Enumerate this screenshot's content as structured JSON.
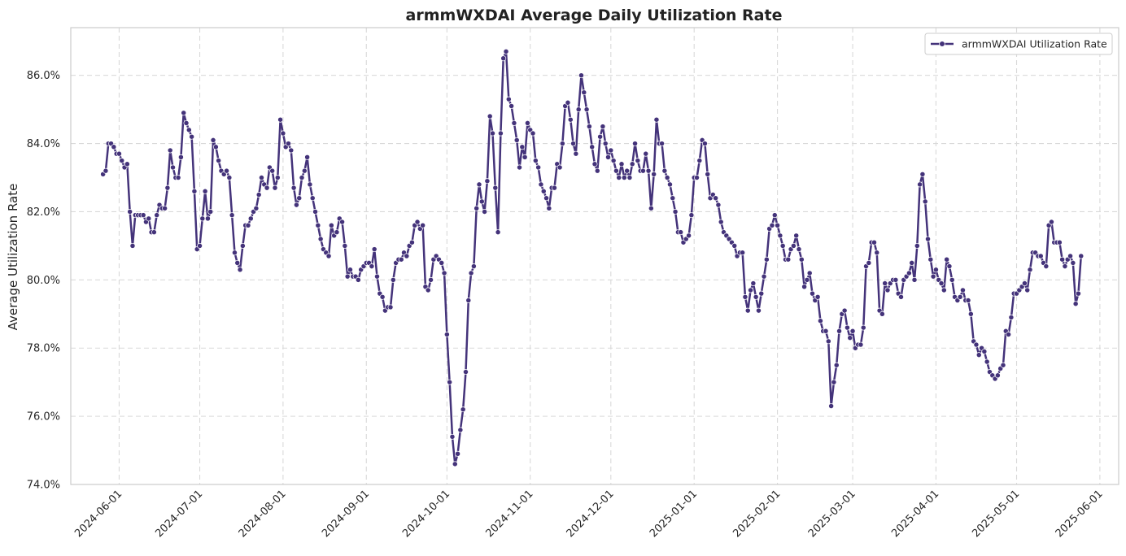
{
  "chart_data": {
    "type": "line",
    "title": "armmWXDAI Average Daily Utilization Rate",
    "xlabel": "",
    "ylabel": "Average Utilization Rate",
    "ylim": [
      74.0,
      87.4
    ],
    "xlim": [
      "2024-05-14",
      "2025-06-08"
    ],
    "y_ticks": [
      "74.0%",
      "76.0%",
      "78.0%",
      "80.0%",
      "82.0%",
      "84.0%",
      "86.0%"
    ],
    "y_tick_values": [
      74,
      76,
      78,
      80,
      82,
      84,
      86
    ],
    "x_ticks": [
      "2024-06-01",
      "2024-07-01",
      "2024-08-01",
      "2024-09-01",
      "2024-10-01",
      "2024-11-01",
      "2024-12-01",
      "2025-01-01",
      "2025-02-01",
      "2025-03-01",
      "2025-04-01",
      "2025-05-01",
      "2025-06-01"
    ],
    "grid": true,
    "legend_position": "top-right",
    "series": [
      {
        "name": "armmWXDAI Utilization Rate",
        "color": "#44337a",
        "x": [
          "2024-05-26",
          "2024-05-27",
          "2024-05-28",
          "2024-05-29",
          "2024-05-30",
          "2024-05-31",
          "2024-06-01",
          "2024-06-02",
          "2024-06-03",
          "2024-06-04",
          "2024-06-05",
          "2024-06-06",
          "2024-06-07",
          "2024-06-08",
          "2024-06-09",
          "2024-06-10",
          "2024-06-11",
          "2024-06-12",
          "2024-06-13",
          "2024-06-14",
          "2024-06-15",
          "2024-06-16",
          "2024-06-17",
          "2024-06-18",
          "2024-06-19",
          "2024-06-20",
          "2024-06-21",
          "2024-06-22",
          "2024-06-23",
          "2024-06-24",
          "2024-06-25",
          "2024-06-26",
          "2024-06-27",
          "2024-06-28",
          "2024-06-29",
          "2024-06-30",
          "2024-07-01",
          "2024-07-02",
          "2024-07-03",
          "2024-07-04",
          "2024-07-05",
          "2024-07-06",
          "2024-07-07",
          "2024-07-08",
          "2024-07-09",
          "2024-07-10",
          "2024-07-11",
          "2024-07-12",
          "2024-07-13",
          "2024-07-14",
          "2024-07-15",
          "2024-07-16",
          "2024-07-17",
          "2024-07-18",
          "2024-07-19",
          "2024-07-20",
          "2024-07-21",
          "2024-07-22",
          "2024-07-23",
          "2024-07-24",
          "2024-07-25",
          "2024-07-26",
          "2024-07-27",
          "2024-07-28",
          "2024-07-29",
          "2024-07-30",
          "2024-07-31",
          "2024-08-01",
          "2024-08-02",
          "2024-08-03",
          "2024-08-04",
          "2024-08-05",
          "2024-08-06",
          "2024-08-07",
          "2024-08-08",
          "2024-08-09",
          "2024-08-10",
          "2024-08-11",
          "2024-08-12",
          "2024-08-13",
          "2024-08-14",
          "2024-08-15",
          "2024-08-16",
          "2024-08-17",
          "2024-08-18",
          "2024-08-19",
          "2024-08-20",
          "2024-08-21",
          "2024-08-22",
          "2024-08-23",
          "2024-08-24",
          "2024-08-25",
          "2024-08-26",
          "2024-08-27",
          "2024-08-28",
          "2024-08-29",
          "2024-08-30",
          "2024-08-31",
          "2024-09-01",
          "2024-09-02",
          "2024-09-03",
          "2024-09-04",
          "2024-09-05",
          "2024-09-06",
          "2024-09-07",
          "2024-09-08",
          "2024-09-09",
          "2024-09-10",
          "2024-09-11",
          "2024-09-12",
          "2024-09-13",
          "2024-09-14",
          "2024-09-15",
          "2024-09-16",
          "2024-09-17",
          "2024-09-18",
          "2024-09-19",
          "2024-09-20",
          "2024-09-21",
          "2024-09-22",
          "2024-09-23",
          "2024-09-24",
          "2024-09-25",
          "2024-09-26",
          "2024-09-27",
          "2024-09-28",
          "2024-09-29",
          "2024-09-30",
          "2024-10-01",
          "2024-10-02",
          "2024-10-03",
          "2024-10-04",
          "2024-10-05",
          "2024-10-06",
          "2024-10-07",
          "2024-10-08",
          "2024-10-09",
          "2024-10-10",
          "2024-10-11",
          "2024-10-12",
          "2024-10-13",
          "2024-10-14",
          "2024-10-15",
          "2024-10-16",
          "2024-10-17",
          "2024-10-18",
          "2024-10-19",
          "2024-10-20",
          "2024-10-21",
          "2024-10-22",
          "2024-10-23",
          "2024-10-24",
          "2024-10-25",
          "2024-10-26",
          "2024-10-27",
          "2024-10-28",
          "2024-10-29",
          "2024-10-30",
          "2024-10-31",
          "2024-11-01",
          "2024-11-02",
          "2024-11-03",
          "2024-11-04",
          "2024-11-05",
          "2024-11-06",
          "2024-11-07",
          "2024-11-08",
          "2024-11-09",
          "2024-11-10",
          "2024-11-11",
          "2024-11-12",
          "2024-11-13",
          "2024-11-14",
          "2024-11-15",
          "2024-11-16",
          "2024-11-17",
          "2024-11-18",
          "2024-11-19",
          "2024-11-20",
          "2024-11-21",
          "2024-11-22",
          "2024-11-23",
          "2024-11-24",
          "2024-11-25",
          "2024-11-26",
          "2024-11-27",
          "2024-11-28",
          "2024-11-29",
          "2024-11-30",
          "2024-12-01",
          "2024-12-02",
          "2024-12-03",
          "2024-12-04",
          "2024-12-05",
          "2024-12-06",
          "2024-12-07",
          "2024-12-08",
          "2024-12-09",
          "2024-12-10",
          "2024-12-11",
          "2024-12-12",
          "2024-12-13",
          "2024-12-14",
          "2024-12-15",
          "2024-12-16",
          "2024-12-17",
          "2024-12-18",
          "2024-12-19",
          "2024-12-20",
          "2024-12-21",
          "2024-12-22",
          "2024-12-23",
          "2024-12-24",
          "2024-12-25",
          "2024-12-26",
          "2024-12-27",
          "2024-12-28",
          "2024-12-29",
          "2024-12-30",
          "2024-12-31",
          "2025-01-01",
          "2025-01-02",
          "2025-01-03",
          "2025-01-04",
          "2025-01-05",
          "2025-01-06",
          "2025-01-07",
          "2025-01-08",
          "2025-01-09",
          "2025-01-10",
          "2025-01-11",
          "2025-01-12",
          "2025-01-13",
          "2025-01-14",
          "2025-01-15",
          "2025-01-16",
          "2025-01-17",
          "2025-01-18",
          "2025-01-19",
          "2025-01-20",
          "2025-01-21",
          "2025-01-22",
          "2025-01-23",
          "2025-01-24",
          "2025-01-25",
          "2025-01-26",
          "2025-01-27",
          "2025-01-28",
          "2025-01-29",
          "2025-01-30",
          "2025-01-31",
          "2025-02-01",
          "2025-02-02",
          "2025-02-03",
          "2025-02-04",
          "2025-02-05",
          "2025-02-06",
          "2025-02-07",
          "2025-02-08",
          "2025-02-09",
          "2025-02-10",
          "2025-02-11",
          "2025-02-12",
          "2025-02-13",
          "2025-02-14",
          "2025-02-15",
          "2025-02-16",
          "2025-02-17",
          "2025-02-18",
          "2025-02-19",
          "2025-02-20",
          "2025-02-21",
          "2025-02-22",
          "2025-02-23",
          "2025-02-24",
          "2025-02-25",
          "2025-02-26",
          "2025-02-27",
          "2025-02-28",
          "2025-03-01",
          "2025-03-02",
          "2025-03-03",
          "2025-03-04",
          "2025-03-05",
          "2025-03-06",
          "2025-03-07",
          "2025-03-08",
          "2025-03-09",
          "2025-03-10",
          "2025-03-11",
          "2025-03-12",
          "2025-03-13",
          "2025-03-14",
          "2025-03-15",
          "2025-03-16",
          "2025-03-17",
          "2025-03-18",
          "2025-03-19",
          "2025-03-20",
          "2025-03-21",
          "2025-03-22",
          "2025-03-23",
          "2025-03-24",
          "2025-03-25",
          "2025-03-26",
          "2025-03-27",
          "2025-03-28",
          "2025-03-29",
          "2025-03-30",
          "2025-03-31",
          "2025-04-01",
          "2025-04-02",
          "2025-04-03",
          "2025-04-04",
          "2025-04-05",
          "2025-04-06",
          "2025-04-07",
          "2025-04-08",
          "2025-04-09",
          "2025-04-10",
          "2025-04-11",
          "2025-04-12",
          "2025-04-13",
          "2025-04-14",
          "2025-04-15",
          "2025-04-16",
          "2025-04-17",
          "2025-04-18",
          "2025-04-19",
          "2025-04-20",
          "2025-04-21",
          "2025-04-22",
          "2025-04-23",
          "2025-04-24",
          "2025-04-25",
          "2025-04-26",
          "2025-04-27",
          "2025-04-28",
          "2025-04-29",
          "2025-04-30",
          "2025-05-01",
          "2025-05-02",
          "2025-05-03",
          "2025-05-04",
          "2025-05-05",
          "2025-05-06",
          "2025-05-07",
          "2025-05-08",
          "2025-05-09",
          "2025-05-10",
          "2025-05-11",
          "2025-05-12",
          "2025-05-13",
          "2025-05-14",
          "2025-05-15",
          "2025-05-16",
          "2025-05-17",
          "2025-05-18",
          "2025-05-19",
          "2025-05-20",
          "2025-05-21",
          "2025-05-22",
          "2025-05-23",
          "2025-05-24",
          "2025-05-25"
        ],
        "values": [
          83.1,
          83.2,
          84.0,
          84.0,
          83.9,
          83.7,
          83.7,
          83.5,
          83.3,
          83.4,
          82.0,
          81.0,
          81.9,
          81.9,
          81.9,
          81.9,
          81.7,
          81.8,
          81.4,
          81.4,
          81.9,
          82.2,
          82.1,
          82.1,
          82.7,
          83.8,
          83.3,
          83.0,
          83.0,
          83.6,
          84.9,
          84.6,
          84.4,
          84.2,
          82.6,
          80.9,
          81.0,
          81.8,
          82.6,
          81.8,
          82.0,
          84.1,
          83.9,
          83.5,
          83.2,
          83.1,
          83.2,
          83.0,
          81.9,
          80.8,
          80.5,
          80.3,
          81.0,
          81.6,
          81.6,
          81.8,
          82.0,
          82.1,
          82.5,
          83.0,
          82.8,
          82.7,
          83.3,
          83.2,
          82.7,
          83.0,
          84.7,
          84.3,
          83.9,
          84.0,
          83.8,
          82.7,
          82.2,
          82.4,
          83.0,
          83.2,
          83.6,
          82.8,
          82.4,
          82.0,
          81.6,
          81.2,
          80.9,
          80.8,
          80.7,
          81.6,
          81.3,
          81.4,
          81.8,
          81.7,
          81.0,
          80.1,
          80.3,
          80.1,
          80.1,
          80.0,
          80.3,
          80.4,
          80.5,
          80.5,
          80.4,
          80.9,
          80.1,
          79.6,
          79.5,
          79.1,
          79.2,
          79.2,
          80.0,
          80.5,
          80.6,
          80.6,
          80.8,
          80.7,
          81.0,
          81.1,
          81.6,
          81.7,
          81.5,
          81.6,
          79.8,
          79.7,
          80.0,
          80.6,
          80.7,
          80.6,
          80.5,
          80.2,
          78.4,
          77.0,
          75.4,
          74.6,
          74.9,
          75.6,
          76.2,
          77.3,
          79.4,
          80.2,
          80.4,
          82.1,
          82.8,
          82.3,
          82.0,
          82.9,
          84.8,
          84.3,
          82.7,
          81.4,
          84.3,
          86.5,
          86.7,
          85.3,
          85.1,
          84.6,
          84.1,
          83.3,
          83.9,
          83.6,
          84.6,
          84.4,
          84.3,
          83.5,
          83.3,
          82.8,
          82.6,
          82.4,
          82.1,
          82.7,
          82.7,
          83.4,
          83.3,
          84.0,
          85.1,
          85.2,
          84.7,
          84.0,
          83.7,
          85.0,
          86.0,
          85.5,
          85.0,
          84.5,
          83.9,
          83.4,
          83.2,
          84.2,
          84.5,
          84.0,
          83.6,
          83.8,
          83.5,
          83.2,
          83.0,
          83.4,
          83.0,
          83.2,
          83.0,
          83.4,
          84.0,
          83.5,
          83.2,
          83.2,
          83.7,
          83.2,
          82.1,
          83.1,
          84.7,
          84.0,
          84.0,
          83.2,
          83.0,
          82.8,
          82.4,
          82.0,
          81.4,
          81.4,
          81.1,
          81.2,
          81.3,
          81.9,
          83.0,
          83.0,
          83.5,
          84.1,
          84.0,
          83.1,
          82.4,
          82.5,
          82.4,
          82.2,
          81.7,
          81.4,
          81.3,
          81.2,
          81.1,
          81.0,
          80.7,
          80.8,
          80.8,
          79.5,
          79.1,
          79.7,
          79.9,
          79.5,
          79.1,
          79.6,
          80.1,
          80.6,
          81.5,
          81.6,
          81.9,
          81.6,
          81.3,
          81.0,
          80.6,
          80.6,
          80.9,
          81.0,
          81.3,
          80.9,
          80.6,
          79.8,
          80.0,
          80.2,
          79.6,
          79.4,
          79.5,
          78.8,
          78.5,
          78.5,
          78.2,
          76.3,
          77.0,
          77.5,
          78.5,
          79.0,
          79.1,
          78.6,
          78.3,
          78.5,
          78.0,
          78.1,
          78.1,
          78.6,
          80.4,
          80.5,
          81.1,
          81.1,
          80.8,
          79.1,
          79.0,
          79.9,
          79.7,
          79.9,
          80.0,
          80.0,
          79.6,
          79.5,
          80.0,
          80.1,
          80.2,
          80.5,
          80.0,
          81.0,
          82.8,
          83.1,
          82.3,
          81.2,
          80.6,
          80.1,
          80.3,
          80.0,
          79.9,
          79.7,
          80.6,
          80.4,
          80.0,
          79.5,
          79.4,
          79.5,
          79.7,
          79.4,
          79.4,
          79.0,
          78.2,
          78.1,
          77.8,
          78.0,
          77.9,
          77.6,
          77.3,
          77.2,
          77.1,
          77.2,
          77.4,
          77.5,
          78.5,
          78.4,
          78.9,
          79.6,
          79.6,
          79.7,
          79.8,
          79.9,
          79.7,
          80.3,
          80.8,
          80.8,
          80.7,
          80.7,
          80.5,
          80.4,
          81.6,
          81.7,
          81.1,
          81.1,
          81.1,
          80.6,
          80.4,
          80.6,
          80.7,
          80.5,
          79.3,
          79.6,
          80.7
        ]
      }
    ]
  }
}
